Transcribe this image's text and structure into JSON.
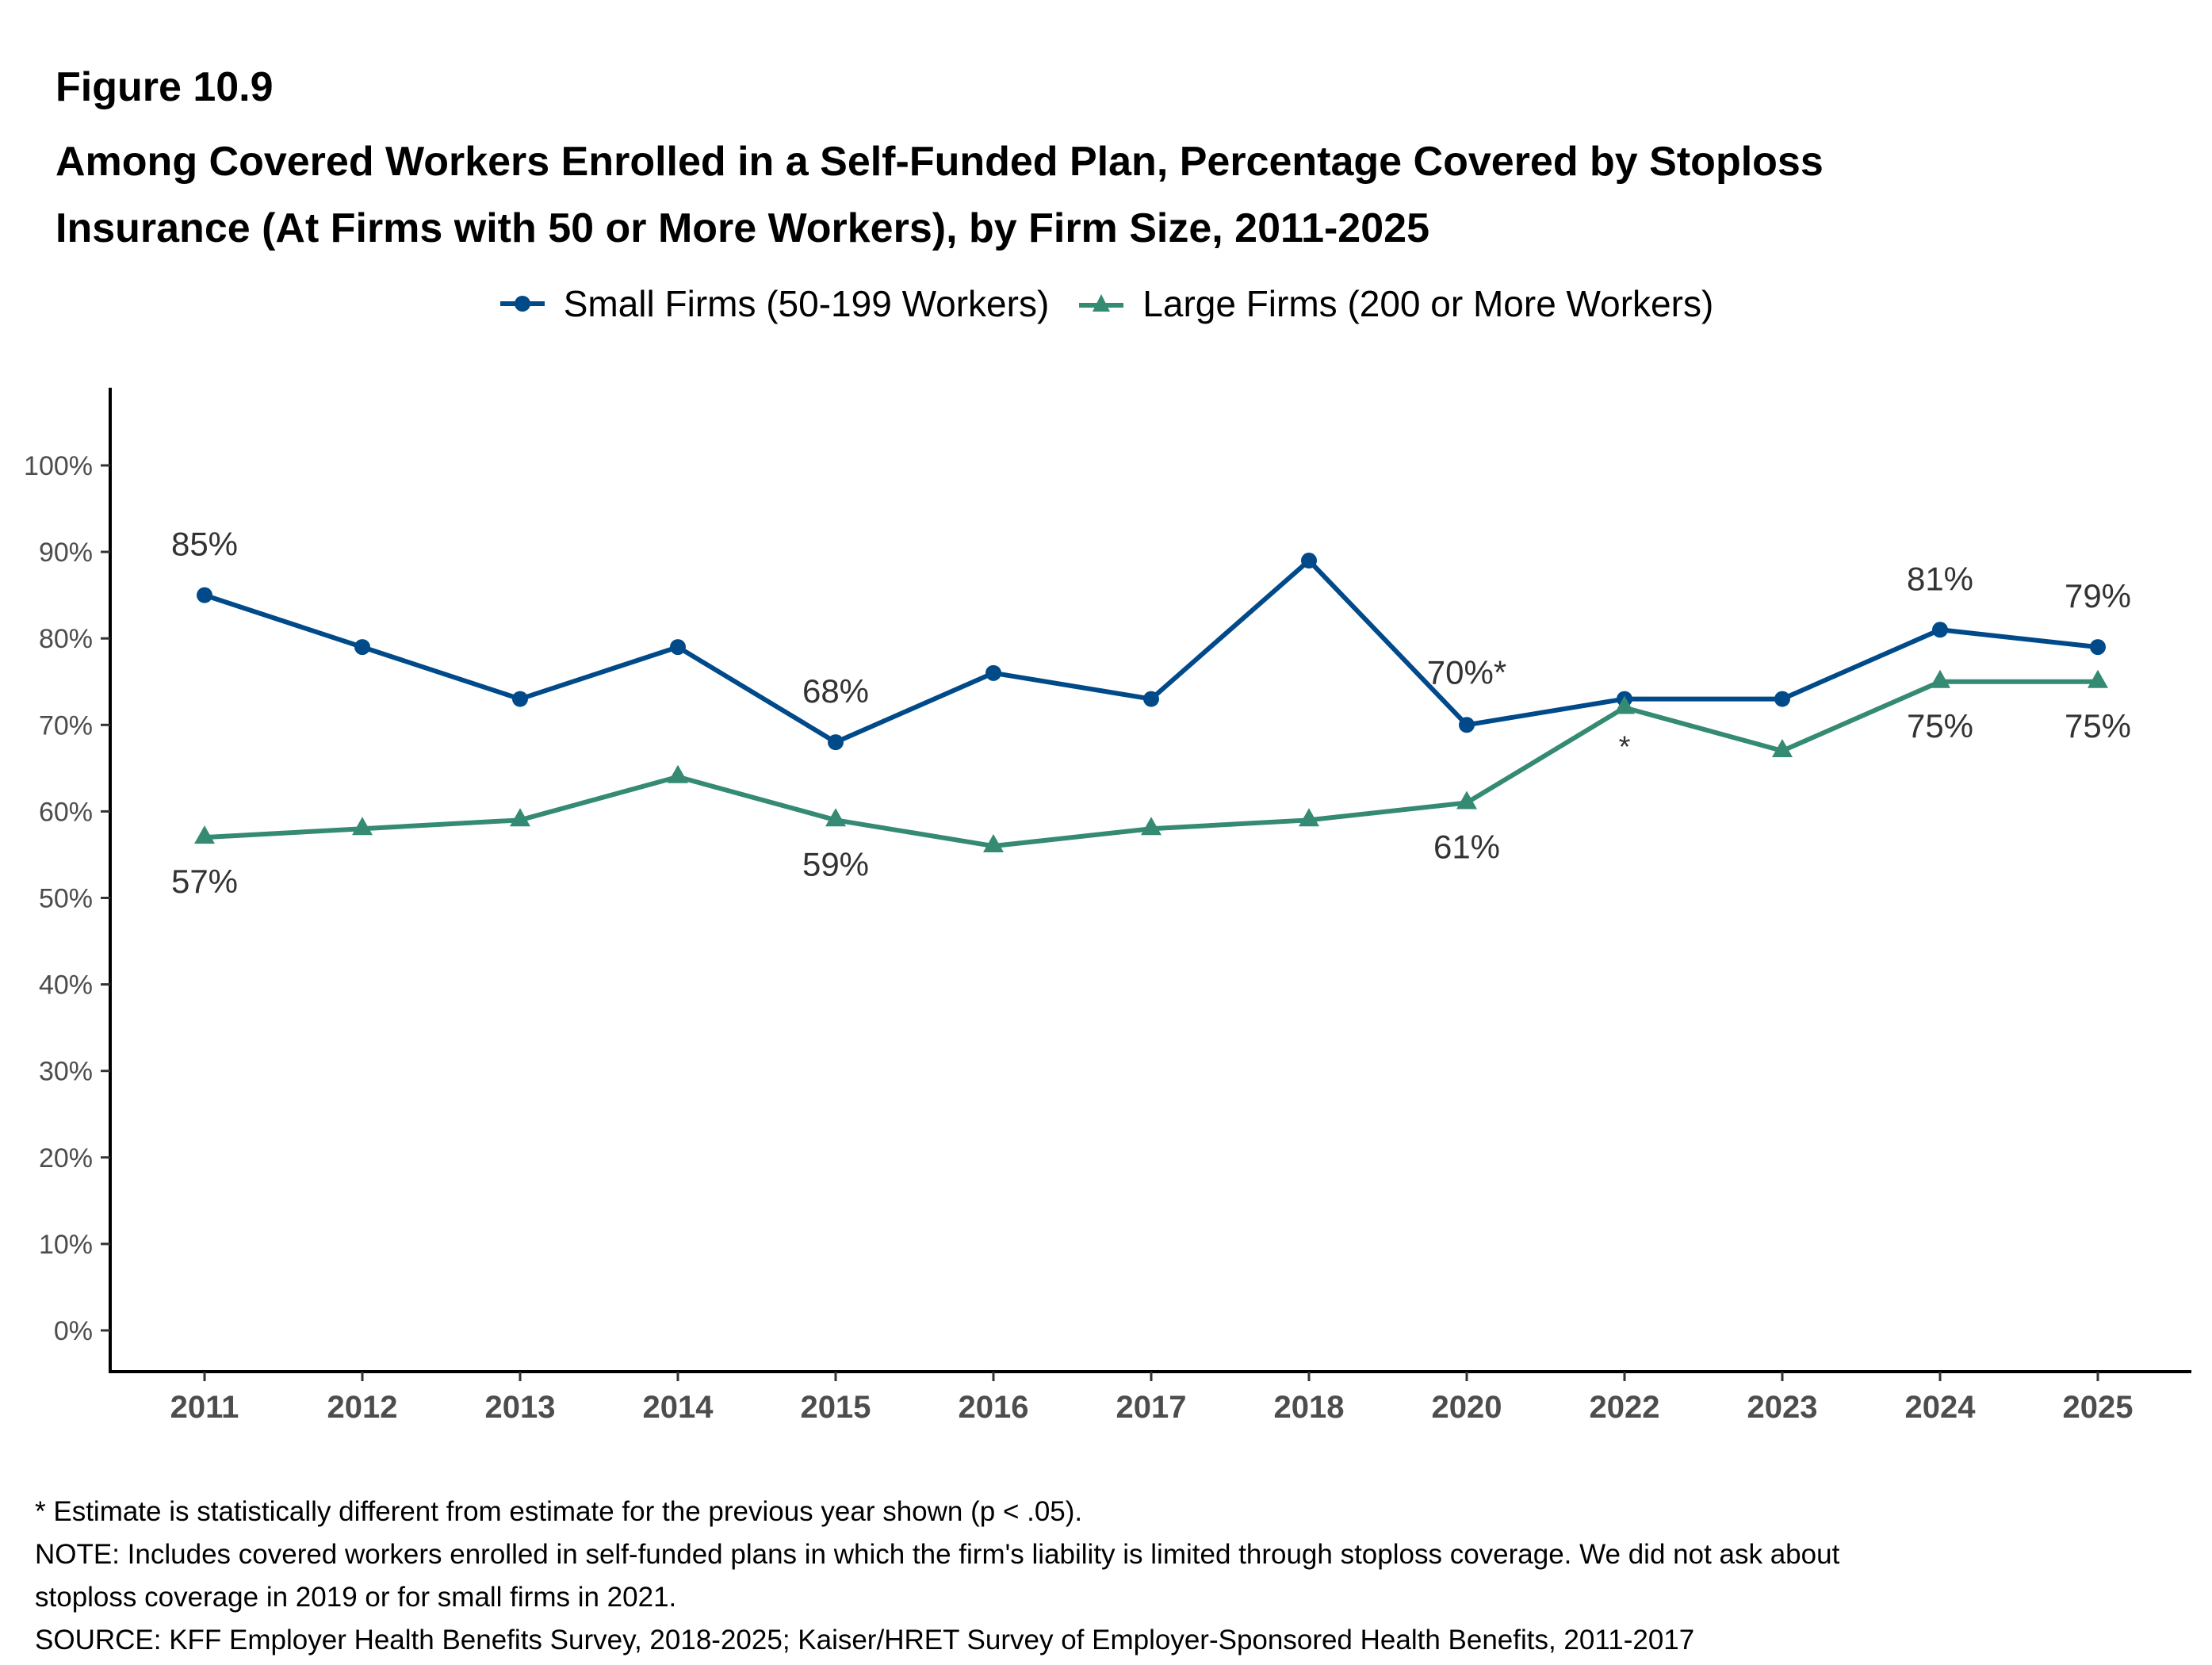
{
  "figure_label": "Figure 10.9",
  "title_lines": [
    "Among Covered Workers Enrolled in a Self-Funded Plan, Percentage Covered by Stoploss",
    "Insurance (At Firms with 50 or More Workers), by Firm Size, 2011-2025"
  ],
  "colors": {
    "small": "#004A8A",
    "large": "#348A73",
    "axis": "#000000",
    "tick_text": "#4D4D4D",
    "label_text": "#333333"
  },
  "chart_data": {
    "type": "line",
    "title": "Among Covered Workers Enrolled in a Self-Funded Plan, Percentage Covered by Stoploss Insurance (At Firms with 50 or More Workers), by Firm Size, 2011-2025",
    "xlabel": "",
    "ylabel": "",
    "categories": [
      "2011",
      "2012",
      "2013",
      "2014",
      "2015",
      "2016",
      "2017",
      "2018",
      "2020",
      "2022",
      "2023",
      "2024",
      "2025"
    ],
    "ylim": [
      -5,
      110
    ],
    "yticks": [
      0,
      10,
      20,
      30,
      40,
      50,
      60,
      70,
      80,
      90,
      100
    ],
    "ytick_labels": [
      "0%",
      "10%",
      "20%",
      "30%",
      "40%",
      "50%",
      "60%",
      "70%",
      "80%",
      "90%",
      "100%"
    ],
    "grid": false,
    "legend_position": "top",
    "series": [
      {
        "name": "Small Firms (50-199 Workers)",
        "marker": "circle",
        "values": [
          85,
          79,
          73,
          79,
          68,
          76,
          73,
          89,
          70,
          73,
          73,
          81,
          79
        ],
        "labels": [
          "85%",
          "",
          "",
          "",
          "68%",
          "",
          "",
          "",
          "70%*",
          "",
          "",
          "81%",
          "79%"
        ],
        "label_position": "above"
      },
      {
        "name": "Large Firms (200 or More Workers)",
        "marker": "triangle",
        "values": [
          57,
          58,
          59,
          64,
          59,
          56,
          58,
          59,
          61,
          72,
          67,
          75,
          75
        ],
        "labels": [
          "57%",
          "",
          "",
          "",
          "59%",
          "",
          "",
          "",
          "61%",
          "*",
          "",
          "75%",
          "75%"
        ],
        "label_position": "below"
      }
    ]
  },
  "notes": [
    "* Estimate is statistically different from estimate for the previous year shown (p < .05).",
    "NOTE: Includes covered workers enrolled in self-funded plans in which the firm's liability is limited through stoploss coverage. We did not ask about",
    "stoploss coverage in 2019 or for small firms in 2021.",
    "SOURCE: KFF Employer Health Benefits Survey, 2018-2025; Kaiser/HRET Survey of Employer-Sponsored Health Benefits, 2011-2017"
  ]
}
